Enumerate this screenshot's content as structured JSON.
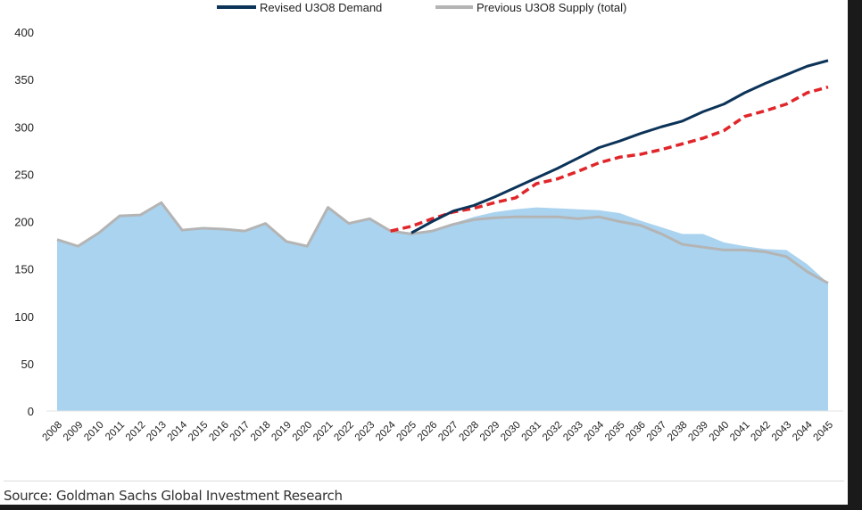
{
  "chart_data": {
    "type": "line",
    "title": "",
    "xlabel": "",
    "ylabel": "",
    "ylim": [
      0,
      400
    ],
    "yticks": [
      "0",
      "50",
      "100",
      "150",
      "200",
      "250",
      "300",
      "350",
      "400"
    ],
    "x": [
      "2008",
      "2009",
      "2010",
      "2011",
      "2012",
      "2013",
      "2014",
      "2015",
      "2016",
      "2017",
      "2018",
      "2019",
      "2020",
      "2021",
      "2022",
      "2023",
      "2024",
      "2025",
      "2026",
      "2027",
      "2028",
      "2029",
      "2030",
      "2031",
      "2032",
      "2033",
      "2034",
      "2035",
      "2036",
      "2037",
      "2038",
      "2039",
      "2040",
      "2041",
      "2042",
      "2043",
      "2044",
      "2045"
    ],
    "legend_position": "top",
    "series": [
      {
        "name": "",
        "kind": "area",
        "color": "#aad3ef",
        "values": [
          181,
          174,
          188,
          206,
          207,
          220,
          191,
          193,
          192,
          190,
          198,
          179,
          174,
          215,
          198,
          203,
          190,
          187,
          191,
          198,
          205,
          210,
          213,
          215,
          214,
          213,
          212,
          209,
          201,
          194,
          187,
          187,
          178,
          174,
          171,
          170,
          155,
          135
        ]
      },
      {
        "name": "Previous U3O8 Supply (total)",
        "kind": "line",
        "color": "#b4b4b4",
        "values": [
          181,
          174,
          188,
          206,
          207,
          220,
          191,
          193,
          192,
          190,
          198,
          179,
          174,
          215,
          198,
          203,
          190,
          187,
          190,
          197,
          202,
          204,
          205,
          205,
          205,
          203,
          205,
          200,
          196,
          187,
          176,
          173,
          170,
          170,
          168,
          163,
          147,
          135
        ]
      },
      {
        "name": "",
        "kind": "dashed",
        "color": "#e0262a",
        "values": [
          null,
          null,
          null,
          null,
          null,
          null,
          null,
          null,
          null,
          null,
          null,
          null,
          null,
          null,
          null,
          null,
          190,
          195,
          203,
          210,
          214,
          220,
          225,
          240,
          245,
          253,
          262,
          268,
          271,
          276,
          282,
          288,
          296,
          311,
          317,
          324,
          336,
          342
        ]
      },
      {
        "name": "Revised U3O8 Demand",
        "kind": "line",
        "color": "#0c3358",
        "values": [
          null,
          null,
          null,
          null,
          null,
          null,
          null,
          null,
          null,
          null,
          null,
          null,
          null,
          null,
          null,
          null,
          null,
          188,
          200,
          211,
          217,
          226,
          236,
          246,
          256,
          267,
          278,
          285,
          293,
          300,
          306,
          316,
          324,
          336,
          346,
          355,
          364,
          370
        ]
      }
    ],
    "legend": [
      "Revised U3O8 Demand",
      "Previous U3O8 Supply (total)"
    ]
  },
  "source": "Source: Goldman Sachs Global Investment Research"
}
